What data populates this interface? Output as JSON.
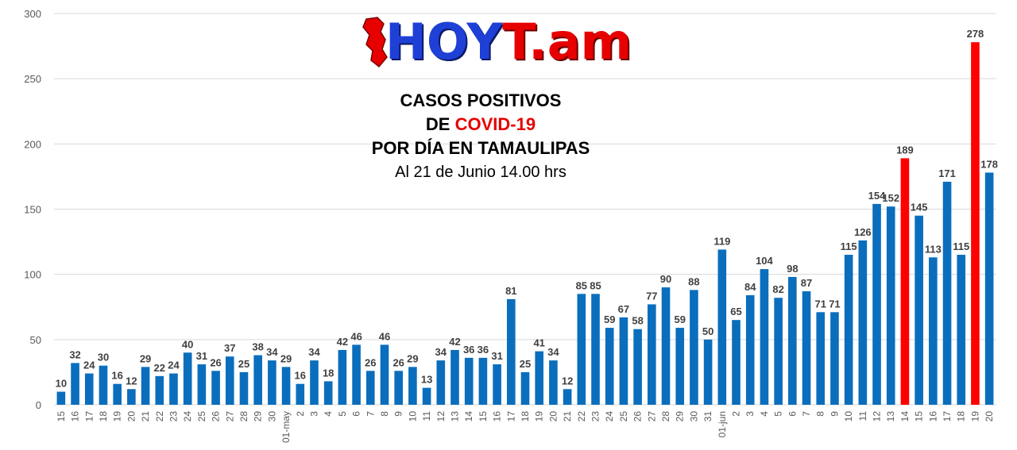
{
  "logo": {
    "part1": "HOY",
    "part2": "T.am",
    "icon": "tamaulipas-map-icon"
  },
  "title": {
    "line1": "CASOS POSITIVOS",
    "line2_prefix": "DE ",
    "line2_highlight": "COVID-19",
    "line3": "POR DÍA EN TAMAULIPAS",
    "subtitle": "Al 21 de Junio 14.00 hrs"
  },
  "colors": {
    "bar": "#0a6ebd",
    "highlight": "#ff0000",
    "grid": "#d9d9d9",
    "axis_text": "#595959",
    "label_text": "#404040"
  },
  "chart_data": {
    "type": "bar",
    "ylim": [
      0,
      300
    ],
    "yticks": [
      0,
      50,
      100,
      150,
      200,
      250,
      300
    ],
    "grid": true,
    "categories": [
      "15",
      "16",
      "17",
      "18",
      "19",
      "20",
      "21",
      "22",
      "23",
      "24",
      "25",
      "26",
      "27",
      "28",
      "29",
      "30",
      "01-may",
      "2",
      "3",
      "4",
      "5",
      "6",
      "7",
      "8",
      "9",
      "10",
      "11",
      "12",
      "13",
      "14",
      "15",
      "16",
      "17",
      "18",
      "19",
      "20",
      "21",
      "22",
      "23",
      "24",
      "25",
      "26",
      "27",
      "28",
      "29",
      "30",
      "31",
      "01-jun",
      "2",
      "3",
      "4",
      "5",
      "6",
      "7",
      "8",
      "9",
      "10",
      "11",
      "12",
      "13",
      "14",
      "15",
      "16",
      "17",
      "18",
      "19",
      "20"
    ],
    "values": [
      10,
      32,
      24,
      30,
      16,
      12,
      29,
      22,
      24,
      40,
      31,
      26,
      37,
      25,
      38,
      34,
      29,
      16,
      34,
      18,
      42,
      46,
      26,
      46,
      26,
      29,
      13,
      34,
      42,
      36,
      36,
      31,
      81,
      25,
      41,
      34,
      12,
      85,
      85,
      59,
      67,
      58,
      77,
      90,
      59,
      88,
      50,
      119,
      65,
      84,
      104,
      82,
      98,
      87,
      71,
      71,
      115,
      126,
      154,
      152,
      189,
      145,
      113,
      171,
      115,
      278,
      178
    ],
    "highlighted": [
      60,
      65
    ]
  }
}
